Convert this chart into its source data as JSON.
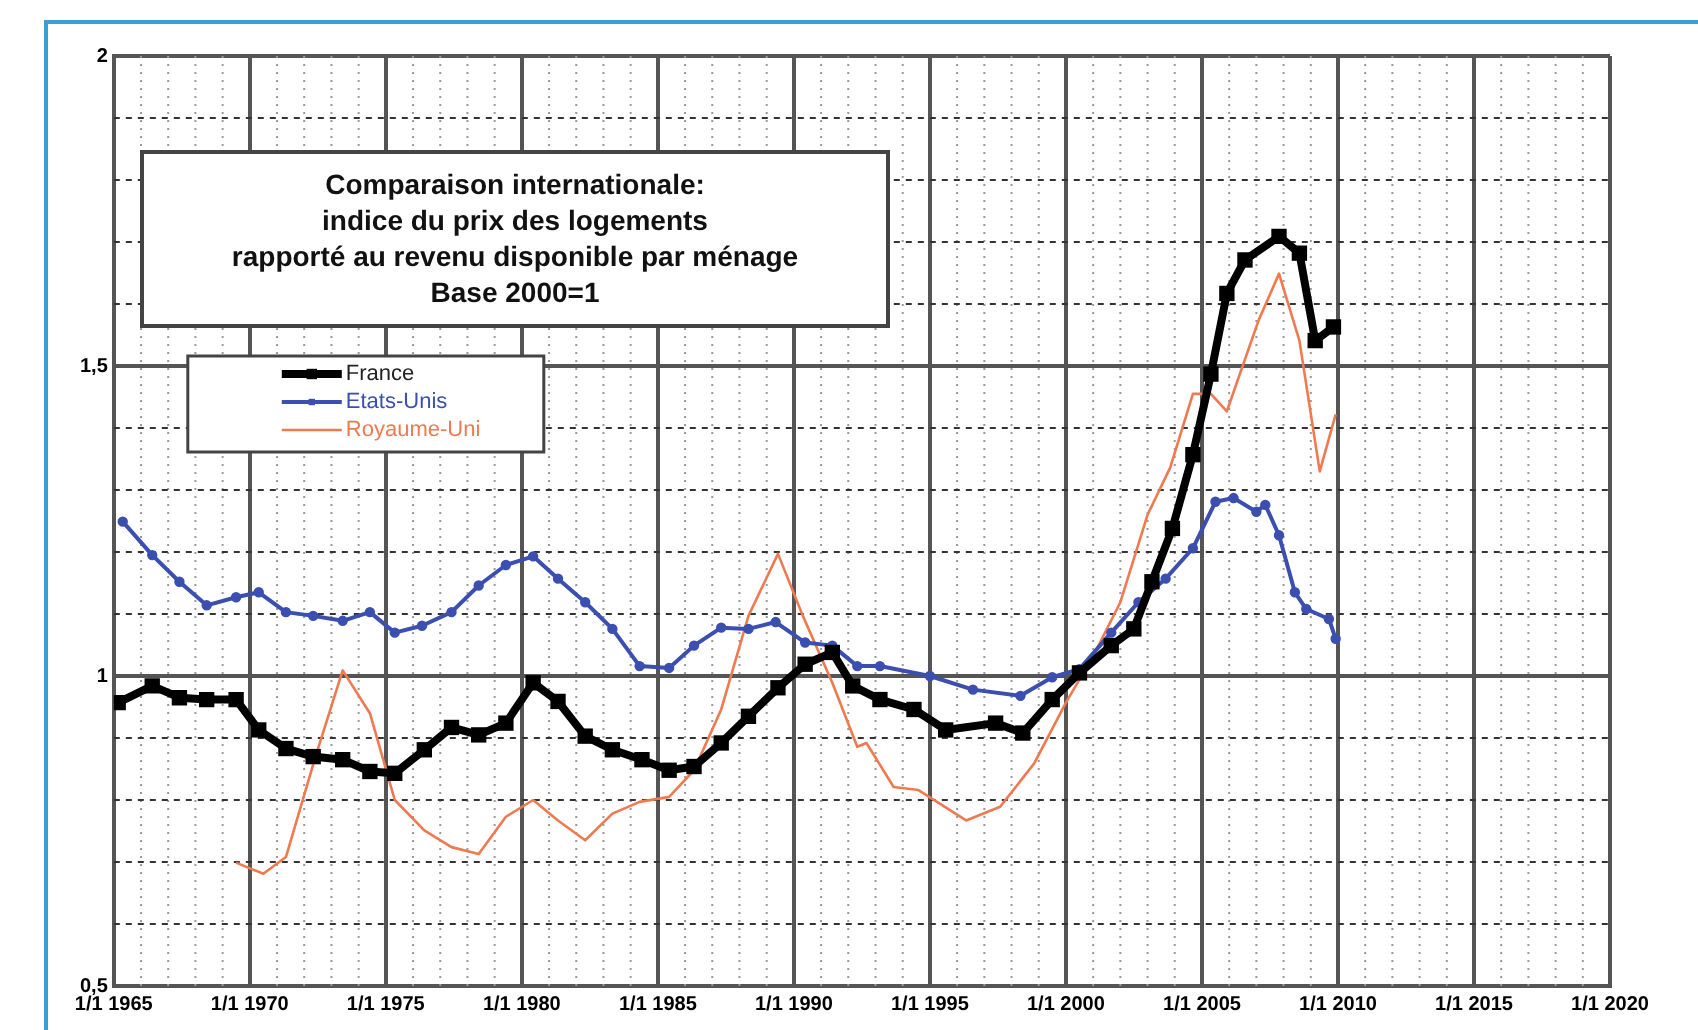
{
  "chart_data": {
    "type": "line",
    "title": "Comparaison internationale:\nindice du prix des logements\nrapporté au revenu disponible par ménage\nBase 2000=1",
    "xlim": [
      "1965-01-01",
      "2020-01-01"
    ],
    "xticks": [
      {
        "value": "1965-01-01",
        "label": "1/1 1965"
      },
      {
        "value": "1966-01-01",
        "label": null
      },
      {
        "value": "1967-01-01",
        "label": null
      },
      {
        "value": "1968-01-01",
        "label": null
      },
      {
        "value": "1969-01-01",
        "label": null
      },
      {
        "value": "1970-01-01",
        "label": "1/1 1970"
      },
      {
        "value": "1971-01-01",
        "label": null
      },
      {
        "value": "1972-01-01",
        "label": null
      },
      {
        "value": "1973-01-01",
        "label": null
      },
      {
        "value": "1974-01-01",
        "label": null
      },
      {
        "value": "1975-01-01",
        "label": "1/1 1975"
      },
      {
        "value": "1976-01-01",
        "label": null
      },
      {
        "value": "1977-01-01",
        "label": null
      },
      {
        "value": "1978-01-01",
        "label": null
      },
      {
        "value": "1979-01-01",
        "label": null
      },
      {
        "value": "1980-01-01",
        "label": "1/1 1980"
      },
      {
        "value": "1981-01-01",
        "label": null
      },
      {
        "value": "1982-01-01",
        "label": null
      },
      {
        "value": "1983-01-01",
        "label": null
      },
      {
        "value": "1984-01-01",
        "label": null
      },
      {
        "value": "1985-01-01",
        "label": "1/1 1985"
      },
      {
        "value": "1986-01-01",
        "label": null
      },
      {
        "value": "1987-01-01",
        "label": null
      },
      {
        "value": "1988-01-01",
        "label": null
      },
      {
        "value": "1989-01-01",
        "label": null
      },
      {
        "value": "1990-01-01",
        "label": "1/1 1990"
      },
      {
        "value": "1991-01-01",
        "label": null
      },
      {
        "value": "1992-01-01",
        "label": null
      },
      {
        "value": "1993-01-01",
        "label": null
      },
      {
        "value": "1994-01-01",
        "label": null
      },
      {
        "value": "1995-01-01",
        "label": "1/1 1995"
      },
      {
        "value": "1996-01-01",
        "label": null
      },
      {
        "value": "1997-01-01",
        "label": null
      },
      {
        "value": "1998-01-01",
        "label": null
      },
      {
        "value": "1999-01-01",
        "label": null
      },
      {
        "value": "2000-01-01",
        "label": "1/1 2000"
      },
      {
        "value": "2001-01-01",
        "label": null
      },
      {
        "value": "2002-01-01",
        "label": null
      },
      {
        "value": "2003-01-01",
        "label": null
      },
      {
        "value": "2004-01-01",
        "label": null
      },
      {
        "value": "2005-01-01",
        "label": "1/1 2005"
      },
      {
        "value": "2006-01-01",
        "label": null
      },
      {
        "value": "2007-01-01",
        "label": null
      },
      {
        "value": "2008-01-01",
        "label": null
      },
      {
        "value": "2009-01-01",
        "label": null
      },
      {
        "value": "2010-01-01",
        "label": "1/1 2010"
      },
      {
        "value": "2011-01-01",
        "label": null
      },
      {
        "value": "2012-01-01",
        "label": null
      },
      {
        "value": "2013-01-01",
        "label": null
      },
      {
        "value": "2014-01-01",
        "label": null
      },
      {
        "value": "2015-01-01",
        "label": "1/1 2015"
      },
      {
        "value": "2016-01-01",
        "label": null
      },
      {
        "value": "2017-01-01",
        "label": null
      },
      {
        "value": "2018-01-01",
        "label": null
      },
      {
        "value": "2019-01-01",
        "label": null
      },
      {
        "value": "2020-01-01",
        "label": "1/1 2020"
      }
    ],
    "ylim": [
      0.5,
      2
    ],
    "yticks": [
      {
        "value": 0.5,
        "label": "0,5"
      },
      {
        "value": 0.6,
        "label": null
      },
      {
        "value": 0.7,
        "label": null
      },
      {
        "value": 0.8,
        "label": null
      },
      {
        "value": 0.9,
        "label": null
      },
      {
        "value": 1,
        "label": "1"
      },
      {
        "value": 1.1,
        "label": null
      },
      {
        "value": 1.2,
        "label": null
      },
      {
        "value": 1.3,
        "label": null
      },
      {
        "value": 1.4,
        "label": null
      },
      {
        "value": 1.5,
        "label": "1,5"
      },
      {
        "value": 1.6,
        "label": null
      },
      {
        "value": 1.7,
        "label": null
      },
      {
        "value": 1.8,
        "label": null
      },
      {
        "value": 1.9,
        "label": null
      },
      {
        "value": 2,
        "label": "2"
      }
    ],
    "grid": true,
    "legend": "top left",
    "line_style": "solid",
    "series": [
      {
        "name": "France",
        "color": "#000000",
        "marker": "square",
        "x": [
          "1965-03",
          "1966-06",
          "1967-06",
          "1968-06",
          "1969-07",
          "1970-05",
          "1971-05",
          "1972-05",
          "1973-06",
          "1974-06",
          "1975-05",
          "1976-06",
          "1977-06",
          "1978-06",
          "1979-06",
          "1980-06",
          "1981-05",
          "1982-05",
          "1983-05",
          "1984-06",
          "1985-06",
          "1986-05",
          "1987-05",
          "1988-05",
          "1989-06",
          "1990-06",
          "1991-06",
          "1992-03",
          "1993-03",
          "1994-06",
          "1995-08",
          "1997-06",
          "1998-06",
          "1999-07",
          "2000-07",
          "2001-09",
          "2002-07",
          "2003-03",
          "2003-12",
          "2004-09",
          "2005-05",
          "2005-12",
          "2006-08",
          "2007-11",
          "2008-08",
          "2009-03",
          "2009-11"
        ],
        "values": [
          0.957,
          0.984,
          0.965,
          0.962,
          0.962,
          0.913,
          0.883,
          0.87,
          0.865,
          0.846,
          0.843,
          0.881,
          0.917,
          0.905,
          0.924,
          0.989,
          0.959,
          0.903,
          0.881,
          0.865,
          0.848,
          0.854,
          0.892,
          0.935,
          0.981,
          1.019,
          1.038,
          0.984,
          0.962,
          0.946,
          0.913,
          0.924,
          0.908,
          0.962,
          1.005,
          1.049,
          1.076,
          1.152,
          1.238,
          1.357,
          1.487,
          1.617,
          1.671,
          1.709,
          1.682,
          1.541,
          1.563
        ]
      },
      {
        "name": "Etats-Unis",
        "color": "#3a4fb0",
        "marker": "circle",
        "x": [
          "1965-05",
          "1966-06",
          "1967-06",
          "1968-06",
          "1969-07",
          "1970-05",
          "1971-05",
          "1972-05",
          "1973-06",
          "1974-06",
          "1975-05",
          "1976-05",
          "1977-06",
          "1978-06",
          "1979-06",
          "1980-06",
          "1981-05",
          "1982-05",
          "1983-05",
          "1984-05",
          "1985-06",
          "1986-05",
          "1987-05",
          "1988-05",
          "1989-05",
          "1990-06",
          "1991-06",
          "1992-05",
          "1993-03",
          "1995-01",
          "1996-08",
          "1998-05",
          "1999-07",
          "2000-07",
          "2001-09",
          "2002-09",
          "2003-09",
          "2004-09",
          "2005-07",
          "2006-03",
          "2007-01",
          "2007-05",
          "2007-11",
          "2008-06",
          "2008-11",
          "2009-09",
          "2009-12"
        ],
        "values": [
          1.249,
          1.195,
          1.152,
          1.114,
          1.127,
          1.135,
          1.103,
          1.097,
          1.089,
          1.103,
          1.07,
          1.081,
          1.103,
          1.146,
          1.179,
          1.193,
          1.157,
          1.119,
          1.076,
          1.016,
          1.013,
          1.049,
          1.078,
          1.076,
          1.087,
          1.054,
          1.049,
          1.016,
          1.016,
          1.0,
          0.978,
          0.968,
          0.998,
          1.011,
          1.07,
          1.119,
          1.157,
          1.206,
          1.281,
          1.287,
          1.265,
          1.276,
          1.227,
          1.135,
          1.108,
          1.092,
          1.06
        ]
      },
      {
        "name": "Royaume-Uni",
        "color": "#f07a50",
        "marker": "none",
        "x": [
          "1969-07",
          "1970-07",
          "1971-05",
          "1972-06",
          "1973-06",
          "1974-06",
          "1975-05",
          "1976-06",
          "1977-06",
          "1978-06",
          "1979-06",
          "1980-06",
          "1981-05",
          "1982-05",
          "1983-05",
          "1984-05",
          "1985-06",
          "1986-05",
          "1987-05",
          "1988-05",
          "1989-06",
          "1990-05",
          "1991-06",
          "1992-05",
          "1992-09",
          "1993-09",
          "1994-08",
          "1996-05",
          "1997-08",
          "1998-11",
          "2000-01",
          "2001-01",
          "2002-01",
          "2003-01",
          "2003-11",
          "2004-09",
          "2005-05",
          "2005-12",
          "2007-02",
          "2007-11",
          "2008-08",
          "2009-05",
          "2009-12"
        ],
        "values": [
          0.699,
          0.681,
          0.708,
          0.87,
          1.009,
          0.94,
          0.8,
          0.751,
          0.724,
          0.713,
          0.773,
          0.8,
          0.767,
          0.735,
          0.778,
          0.797,
          0.805,
          0.848,
          0.946,
          1.097,
          1.197,
          1.097,
          0.989,
          0.886,
          0.892,
          0.821,
          0.816,
          0.767,
          0.789,
          0.859,
          0.957,
          1.032,
          1.119,
          1.26,
          1.336,
          1.455,
          1.455,
          1.427,
          1.574,
          1.649,
          1.541,
          1.33,
          1.422
        ]
      }
    ]
  }
}
